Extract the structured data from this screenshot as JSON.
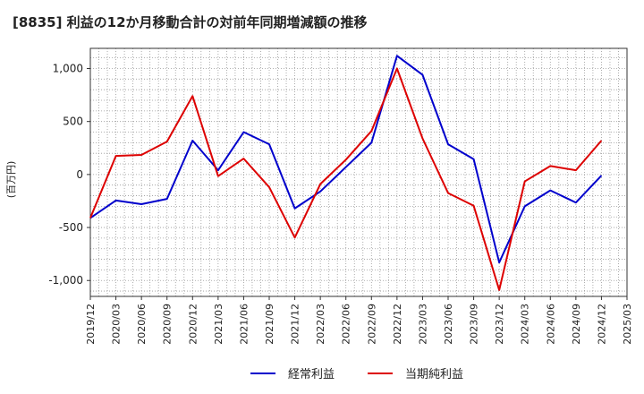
{
  "chart_data": {
    "type": "line",
    "title": "[8835]  利益の12か月移動合計の対前年同期増減額の推移",
    "ylabel": "(百万円)",
    "xlabel": "",
    "ylim": [
      -1150,
      1190
    ],
    "yticks": [
      -1000,
      -500,
      0,
      500,
      1000
    ],
    "ytick_labels": [
      "-1,000",
      "-500",
      "0",
      "500",
      "1,000"
    ],
    "x_tick_labels": [
      "2019/12",
      "2020/03",
      "2020/06",
      "2020/09",
      "2020/12",
      "2021/03",
      "2021/06",
      "2021/09",
      "2021/12",
      "2022/03",
      "2022/06",
      "2022/09",
      "2022/12",
      "2023/03",
      "2023/06",
      "2023/09",
      "2023/12",
      "2024/03",
      "2024/06",
      "2024/09",
      "2024/12",
      "2025/03"
    ],
    "grid": true,
    "series": [
      {
        "name": "経常利益",
        "color": "#0000cc",
        "values": [
          -410,
          -245,
          -280,
          -230,
          320,
          40,
          400,
          285,
          -320,
          -160,
          70,
          300,
          1120,
          940,
          285,
          145,
          -830,
          -300,
          -150,
          -265,
          -10
        ]
      },
      {
        "name": "当期純利益",
        "color": "#dd0000",
        "values": [
          -410,
          175,
          185,
          310,
          740,
          -15,
          150,
          -120,
          -595,
          -90,
          140,
          410,
          1000,
          340,
          -175,
          -295,
          -1090,
          -65,
          80,
          40,
          320
        ]
      }
    ]
  }
}
